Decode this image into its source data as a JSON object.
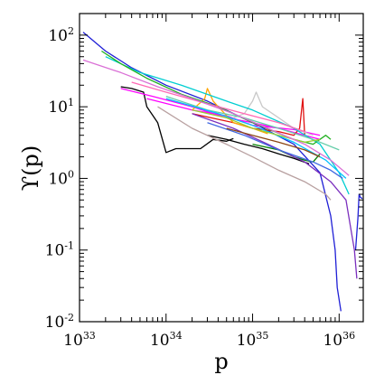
{
  "chart_data": {
    "type": "line",
    "title": "",
    "xlabel": "p",
    "ylabel": "ϒ(p)",
    "x_scale": "log",
    "y_scale": "log",
    "xlim": [
      1e+33,
      1.9e+36
    ],
    "ylim": [
      0.01,
      200
    ],
    "grid": false,
    "x_ticks": [
      {
        "value": 1e+33,
        "base": "10",
        "exp": "33"
      },
      {
        "value": 1e+34,
        "base": "10",
        "exp": "34"
      },
      {
        "value": 1e+35,
        "base": "10",
        "exp": "35"
      },
      {
        "value": 1e+36,
        "base": "10",
        "exp": "36"
      }
    ],
    "y_ticks": [
      {
        "value": 0.01,
        "base": "10",
        "exp": "-2"
      },
      {
        "value": 0.1,
        "base": "10",
        "exp": "-1"
      },
      {
        "value": 1,
        "base": "10",
        "exp": "0"
      },
      {
        "value": 10,
        "base": "10",
        "exp": "1"
      },
      {
        "value": 100,
        "base": "10",
        "exp": "2"
      }
    ],
    "series": [
      {
        "color": "#1f1fd6",
        "points": [
          [
            1.1e+33,
            110
          ],
          [
            2e+33,
            60
          ],
          [
            4e+33,
            35
          ],
          [
            1e+34,
            20
          ],
          [
            3e+34,
            12
          ],
          [
            1e+35,
            6
          ],
          [
            3e+35,
            3
          ],
          [
            6e+35,
            1.2
          ],
          [
            8e+35,
            0.3
          ],
          [
            9e+35,
            0.1
          ],
          [
            9.5e+35,
            0.03
          ],
          [
            1.05e+36,
            0.014
          ]
        ]
      },
      {
        "color": "#1f1fd6",
        "points": [
          [
            1.55e+36,
            0.1
          ],
          [
            1.65e+36,
            0.28
          ],
          [
            1.7e+36,
            0.6
          ],
          [
            1.75e+36,
            0.55
          ],
          [
            1.85e+36,
            0.52
          ]
        ]
      },
      {
        "color": "#000000",
        "points": [
          [
            3e+33,
            19
          ],
          [
            4e+33,
            18
          ],
          [
            5.5e+33,
            16
          ],
          [
            6e+33,
            10
          ],
          [
            8e+33,
            6
          ],
          [
            1e+34,
            2.3
          ],
          [
            1.3e+34,
            2.6
          ],
          [
            1.8e+34,
            2.6
          ],
          [
            2.5e+34,
            2.6
          ],
          [
            3.5e+34,
            3.5
          ],
          [
            5e+34,
            3.3
          ],
          [
            6e+34,
            3.6
          ]
        ]
      },
      {
        "color": "#000000",
        "points": [
          [
            3e+34,
            4
          ],
          [
            5e+34,
            3.5
          ],
          [
            8e+34,
            3
          ],
          [
            1.3e+35,
            2.6
          ],
          [
            2e+35,
            2.2
          ],
          [
            3e+35,
            1.9
          ],
          [
            4.5e+35,
            1.6
          ]
        ]
      },
      {
        "color": "#ff00ff",
        "points": [
          [
            3e+33,
            18
          ],
          [
            7e+33,
            14
          ],
          [
            2e+34,
            10
          ],
          [
            5e+34,
            7
          ],
          [
            1e+35,
            6
          ],
          [
            2e+35,
            5
          ],
          [
            4e+35,
            4
          ],
          [
            6e+35,
            3.5
          ]
        ]
      },
      {
        "color": "#ff00ff",
        "points": [
          [
            6e+33,
            13
          ],
          [
            2e+34,
            9
          ],
          [
            5e+34,
            7.5
          ],
          [
            1e+35,
            5.5
          ],
          [
            3e+35,
            4.8
          ],
          [
            6e+35,
            4
          ]
        ]
      },
      {
        "color": "#e01010",
        "points": [
          [
            2e+34,
            8
          ],
          [
            6e+34,
            6
          ],
          [
            1e+35,
            5
          ],
          [
            2e+35,
            4.5
          ],
          [
            3e+35,
            4
          ],
          [
            3.5e+35,
            5
          ],
          [
            3.8e+35,
            13
          ],
          [
            4e+35,
            4
          ]
        ]
      },
      {
        "color": "#ffa500",
        "points": [
          [
            2e+34,
            9
          ],
          [
            2.8e+34,
            13
          ],
          [
            3e+34,
            18
          ],
          [
            3.5e+34,
            12
          ],
          [
            4e+34,
            10
          ],
          [
            6e+34,
            6
          ],
          [
            1e+35,
            5
          ],
          [
            1.5e+35,
            4.2
          ]
        ]
      },
      {
        "color": "#c8c8c8",
        "points": [
          [
            6e+34,
            7
          ],
          [
            8e+34,
            8
          ],
          [
            1e+35,
            12
          ],
          [
            1.1e+35,
            16
          ],
          [
            1.3e+35,
            10
          ],
          [
            2e+35,
            7
          ],
          [
            3e+35,
            5
          ],
          [
            5e+35,
            4
          ]
        ]
      },
      {
        "color": "#00ced1",
        "points": [
          [
            2e+33,
            50
          ],
          [
            5e+33,
            30
          ],
          [
            1.5e+34,
            20
          ],
          [
            5e+34,
            12
          ],
          [
            1e+35,
            9
          ],
          [
            3e+35,
            5
          ],
          [
            6e+35,
            3
          ],
          [
            1e+36,
            1.2
          ],
          [
            1.3e+36,
            0.6
          ]
        ]
      },
      {
        "color": "#20b020",
        "points": [
          [
            1.8e+33,
            60
          ],
          [
            3e+33,
            40
          ],
          [
            6e+33,
            25
          ],
          [
            1.5e+34,
            15
          ],
          [
            4e+34,
            10
          ],
          [
            1e+35,
            6
          ],
          [
            3e+35,
            3.5
          ],
          [
            5e+35,
            3
          ],
          [
            7e+35,
            4
          ],
          [
            8e+35,
            3.5
          ]
        ]
      },
      {
        "color": "#008000",
        "points": [
          [
            1e+35,
            3
          ],
          [
            2e+35,
            2.5
          ],
          [
            3e+35,
            2
          ],
          [
            4e+35,
            1.8
          ],
          [
            5e+35,
            1.7
          ],
          [
            6e+35,
            2.2
          ]
        ]
      },
      {
        "color": "#7b2fbe",
        "points": [
          [
            2e+34,
            8
          ],
          [
            6e+34,
            5
          ],
          [
            1.5e+35,
            3
          ],
          [
            4e+35,
            1.7
          ],
          [
            8e+35,
            0.9
          ],
          [
            1.2e+36,
            0.5
          ],
          [
            1.5e+36,
            0.1
          ],
          [
            1.6e+36,
            0.04
          ]
        ]
      },
      {
        "color": "#b8a0a0",
        "points": [
          [
            8e+33,
            10
          ],
          [
            2e+34,
            5
          ],
          [
            5e+34,
            3
          ],
          [
            1e+35,
            2
          ],
          [
            2e+35,
            1.3
          ],
          [
            4e+35,
            0.9
          ],
          [
            7e+35,
            0.6
          ],
          [
            8e+35,
            0.5
          ]
        ]
      },
      {
        "color": "#4169e1",
        "points": [
          [
            3e+34,
            6
          ],
          [
            8e+34,
            4
          ],
          [
            2e+35,
            2.5
          ],
          [
            5e+35,
            1.7
          ],
          [
            8e+35,
            1.3
          ],
          [
            1.1e+36,
            1
          ]
        ]
      },
      {
        "color": "#66cdaa",
        "points": [
          [
            1e+34,
            14
          ],
          [
            3e+34,
            9
          ],
          [
            8e+34,
            7
          ],
          [
            2e+35,
            5
          ],
          [
            5e+35,
            3.5
          ],
          [
            1e+36,
            2.5
          ]
        ]
      },
      {
        "color": "#ff69b4",
        "points": [
          [
            4e+33,
            22
          ],
          [
            1e+34,
            16
          ],
          [
            3e+34,
            11
          ],
          [
            8e+34,
            8
          ],
          [
            2e+35,
            6
          ],
          [
            4e+35,
            4.5
          ]
        ]
      },
      {
        "color": "#00bfff",
        "points": [
          [
            1e+34,
            13
          ],
          [
            4e+34,
            8
          ],
          [
            1e+35,
            5.5
          ],
          [
            3e+35,
            3.2
          ],
          [
            7e+35,
            1.8
          ],
          [
            1.2e+36,
            1
          ]
        ]
      },
      {
        "color": "#9acd32",
        "points": [
          [
            2e+34,
            9
          ],
          [
            5e+34,
            7
          ],
          [
            1e+35,
            5
          ],
          [
            2e+35,
            4
          ],
          [
            4e+35,
            3.2
          ],
          [
            6e+35,
            3.5
          ]
        ]
      },
      {
        "color": "#8b4513",
        "points": [
          [
            5e+34,
            5
          ],
          [
            1e+35,
            4
          ],
          [
            2e+35,
            3.2
          ],
          [
            4e+35,
            2.5
          ],
          [
            6e+35,
            2
          ]
        ]
      },
      {
        "color": "#da70d6",
        "points": [
          [
            1.1e+33,
            45
          ],
          [
            3e+33,
            30
          ],
          [
            8e+33,
            19
          ],
          [
            2e+34,
            13
          ],
          [
            6e+34,
            8
          ],
          [
            1.5e+35,
            5
          ],
          [
            4e+35,
            3
          ],
          [
            8e+35,
            1.8
          ],
          [
            1.3e+36,
            1.1
          ]
        ]
      }
    ]
  }
}
